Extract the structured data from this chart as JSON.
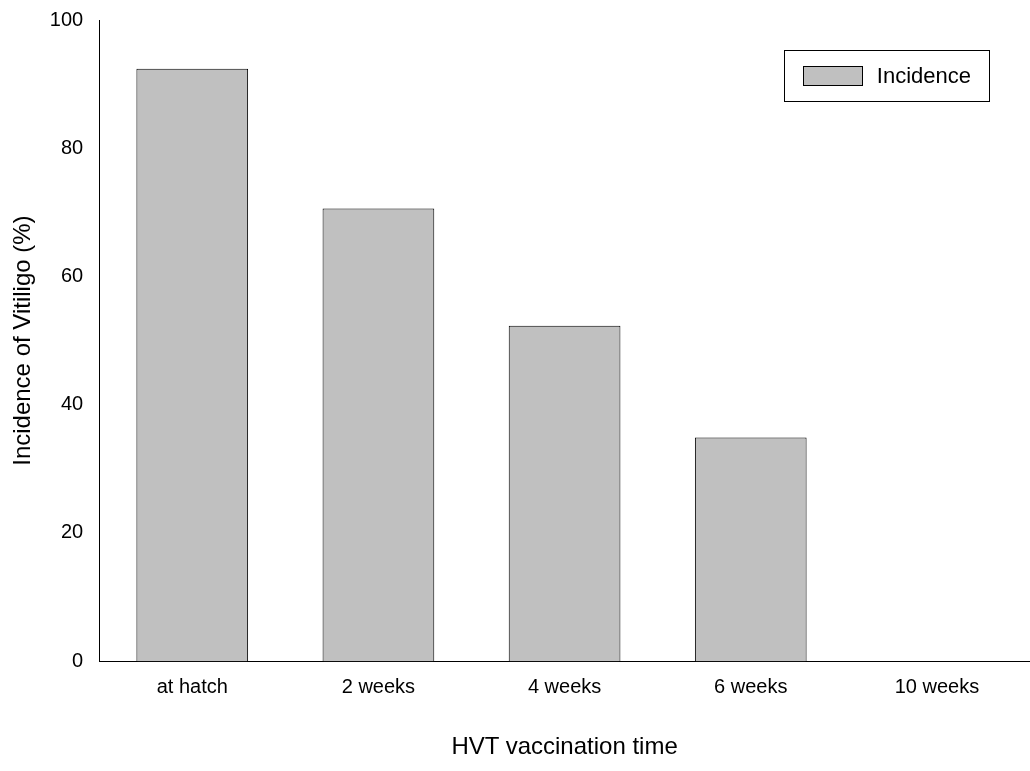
{
  "chart_data": {
    "type": "bar",
    "xlabel": "HVT vaccination time",
    "ylabel": "Incidence of Vitiligo (%)",
    "categories": [
      "at hatch",
      "2 weeks",
      "4 weeks",
      "6 weeks",
      "10 weeks"
    ],
    "series": [
      {
        "name": "Incidence",
        "color": "#c0c0c0",
        "values": [
          92.4,
          70.6,
          52.3,
          34.9,
          0
        ]
      }
    ],
    "ylim": [
      0,
      100
    ],
    "yticks": [
      0,
      20,
      40,
      60,
      80,
      100
    ],
    "grid": false,
    "legend": "top right"
  }
}
